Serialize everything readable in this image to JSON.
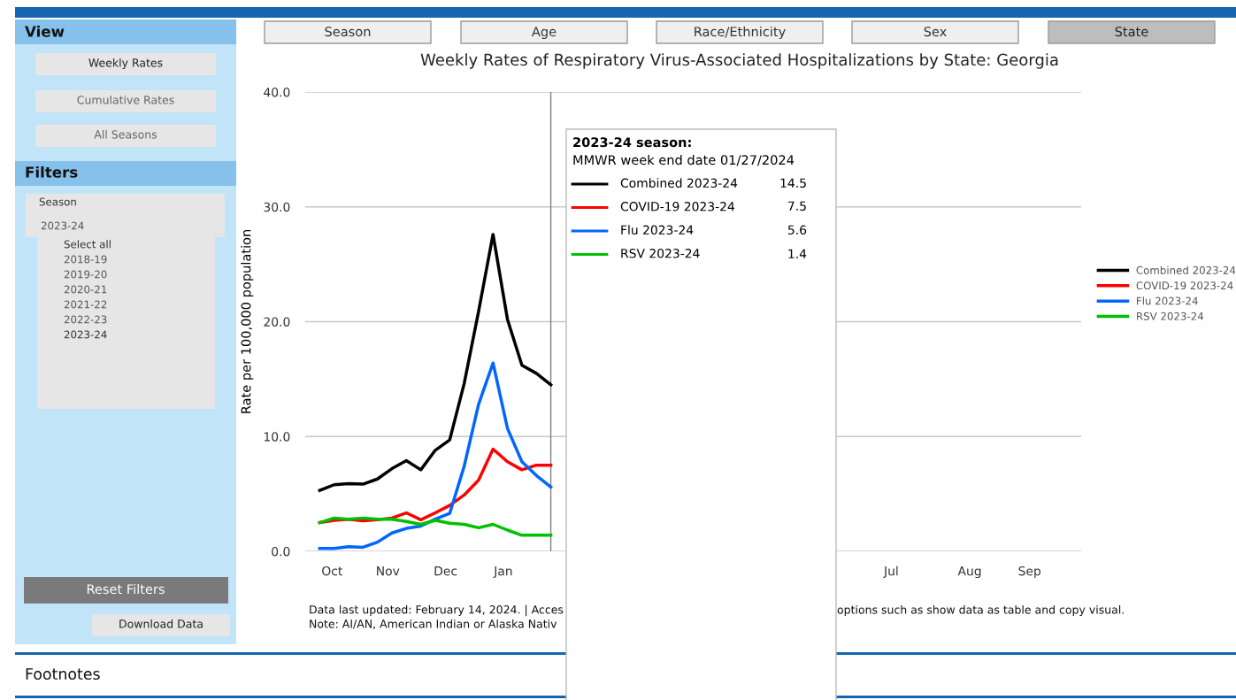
{
  "chart_data": {
    "type": "line",
    "title": "Weekly Rates of Respiratory Virus-Associated Hospitalizations by State: Georgia",
    "ylabel": "Rate per 100,000 population",
    "x": [
      "2023-10-07",
      "2023-10-14",
      "2023-10-21",
      "2023-10-28",
      "2023-11-04",
      "2023-11-11",
      "2023-11-18",
      "2023-11-25",
      "2023-12-02",
      "2023-12-09",
      "2023-12-16",
      "2023-12-23",
      "2023-12-30",
      "2024-01-06",
      "2024-01-13",
      "2024-01-20",
      "2024-01-27"
    ],
    "series": [
      {
        "name": "Combined 2023-24",
        "color": "#000000",
        "values": [
          5.3,
          5.8,
          5.9,
          5.85,
          6.3,
          7.2,
          7.9,
          7.1,
          8.8,
          9.7,
          14.6,
          20.9,
          27.6,
          20.2,
          16.2,
          15.5,
          14.5
        ]
      },
      {
        "name": "COVID-19 2023-24",
        "color": "#ff0000",
        "values": [
          2.5,
          2.7,
          2.8,
          2.65,
          2.75,
          2.9,
          3.35,
          2.75,
          3.35,
          4.0,
          4.9,
          6.2,
          8.9,
          7.8,
          7.1,
          7.5,
          7.5
        ]
      },
      {
        "name": "Flu 2023-24",
        "color": "#0066ff",
        "values": [
          0.25,
          0.25,
          0.4,
          0.35,
          0.8,
          1.6,
          2.0,
          2.2,
          2.8,
          3.3,
          7.4,
          12.8,
          16.4,
          10.7,
          7.8,
          6.6,
          5.6
        ]
      },
      {
        "name": "RSV 2023-24",
        "color": "#00c000",
        "values": [
          2.5,
          2.9,
          2.8,
          2.9,
          2.8,
          2.8,
          2.6,
          2.35,
          2.7,
          2.45,
          2.35,
          2.05,
          2.35,
          1.85,
          1.4,
          1.4,
          1.4
        ]
      }
    ],
    "xlim": [
      "2023-09-30",
      "2024-10-10"
    ],
    "xticks": [
      {
        "value": "2023-10-13",
        "label": "Oct"
      },
      {
        "value": "2023-11-09",
        "label": "Nov"
      },
      {
        "value": "2023-12-07",
        "label": "Dec"
      },
      {
        "value": "2024-01-04",
        "label": "Jan"
      },
      {
        "value": "2024-07-10",
        "label": "Jul"
      },
      {
        "value": "2024-08-17",
        "label": "Aug"
      },
      {
        "value": "2024-09-15",
        "label": "Sep"
      }
    ],
    "ylim": [
      0,
      40
    ],
    "yticks": [
      {
        "value": 0,
        "label": "0.0"
      },
      {
        "value": 10,
        "label": "10.0"
      },
      {
        "value": 20,
        "label": "20.0"
      },
      {
        "value": 30,
        "label": "30.0"
      },
      {
        "value": 40,
        "label": "40.0"
      }
    ],
    "grid": "y",
    "legend": "right",
    "line_style": "solid",
    "ref_lines": [
      {
        "axis": "x",
        "value": "2024-01-27",
        "color": "#808080"
      }
    ],
    "annotations": [
      "Season",
      "Age",
      "Race/Ethnicity",
      "Sex",
      "State",
      "View",
      "Weekly Rates",
      "Cumulative Rates",
      "All Seasons",
      "Filters",
      "Season",
      "2023-24",
      "Select all",
      "2018-19",
      "2019-20",
      "2020-21",
      "2021-22",
      "2022-23",
      "2023-24",
      "Reset Filters",
      "Download Data",
      "2023-24 season:",
      "MMWR week end date 01/27/2024",
      "14.5",
      "7.5",
      "5.6",
      "1.4",
      "Data last updated: February 14, 2024. | Acces",
      "options such as show data as table and copy visual.",
      "Note: AI/AN, American Indian or Alaska Nativ",
      "Footnotes"
    ]
  }
}
